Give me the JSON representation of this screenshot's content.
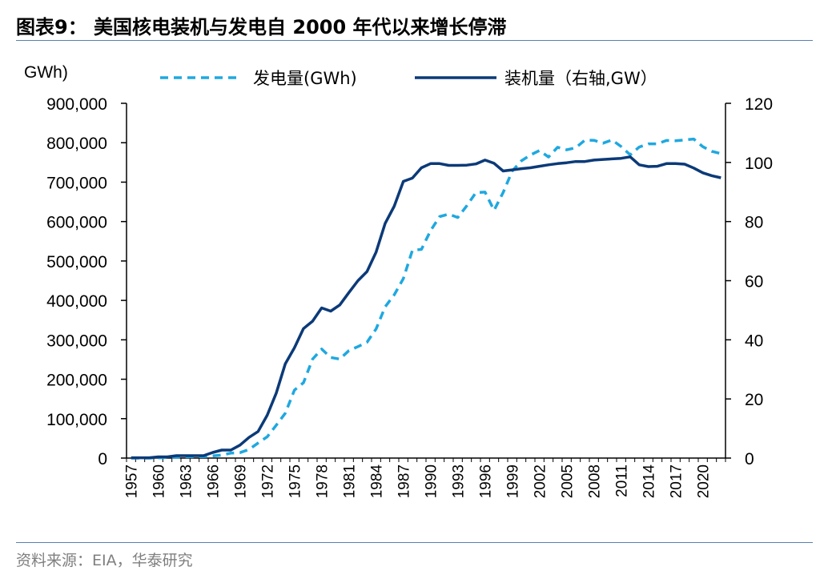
{
  "header": {
    "title": "图表9：  美国核电装机与发电自 2000 年代以来增长停滞"
  },
  "footer": {
    "source": "资料来源：EIA，华泰研究"
  },
  "chart_data": {
    "type": "line",
    "y_left_unit": "GWh)",
    "y_left_ticks": [
      "0",
      "100,000",
      "200,000",
      "300,000",
      "400,000",
      "500,000",
      "600,000",
      "700,000",
      "800,000",
      "900,000"
    ],
    "y_right_ticks": [
      "0",
      "20",
      "40",
      "60",
      "80",
      "100",
      "120"
    ],
    "ylim_left": [
      0,
      900000
    ],
    "ylim_right": [
      0,
      120
    ],
    "x_tick_labels": [
      "1957",
      "1960",
      "1963",
      "1966",
      "1969",
      "1972",
      "1975",
      "1978",
      "1981",
      "1984",
      "1987",
      "1990",
      "1993",
      "1996",
      "1999",
      "2002",
      "2005",
      "2008",
      "2011",
      "2014",
      "2017",
      "2020"
    ],
    "x": [
      1957,
      1958,
      1959,
      1960,
      1961,
      1962,
      1963,
      1964,
      1965,
      1966,
      1967,
      1968,
      1969,
      1970,
      1971,
      1972,
      1973,
      1974,
      1975,
      1976,
      1977,
      1978,
      1979,
      1980,
      1981,
      1982,
      1983,
      1984,
      1985,
      1986,
      1987,
      1988,
      1989,
      1990,
      1991,
      1992,
      1993,
      1994,
      1995,
      1996,
      1997,
      1998,
      1999,
      2000,
      2001,
      2002,
      2003,
      2004,
      2005,
      2006,
      2007,
      2008,
      2009,
      2010,
      2011,
      2012,
      2013,
      2014,
      2015,
      2016,
      2017,
      2018,
      2019,
      2020,
      2021,
      2022
    ],
    "series": [
      {
        "name": "发电量(GWh)",
        "axis": "left",
        "style": "dashed",
        "color": "#1fa8e0",
        "values": [
          0,
          0,
          0,
          500,
          1700,
          2300,
          3200,
          3300,
          3700,
          5500,
          7700,
          12500,
          13900,
          21800,
          38100,
          54100,
          83500,
          114000,
          172500,
          191100,
          250900,
          276400,
          255200,
          251100,
          272700,
          282800,
          293700,
          327600,
          383700,
          414000,
          455300,
          527000,
          529400,
          576900,
          612600,
          618800,
          610300,
          640400,
          673400,
          674700,
          628600,
          673700,
          728300,
          753900,
          768800,
          780100,
          763700,
          788500,
          782000,
          787200,
          806400,
          806200,
          798900,
          807000,
          790200,
          769300,
          789000,
          797200,
          797200,
          805700,
          805000,
          807100,
          809400,
          789900,
          778200,
          772200
        ]
      },
      {
        "name": "装机量（右轴,GW）",
        "axis": "right",
        "style": "solid",
        "color": "#0b3a78",
        "values": [
          0.1,
          0.1,
          0.1,
          0.4,
          0.4,
          0.8,
          0.8,
          0.8,
          0.8,
          1.9,
          2.7,
          2.7,
          4.4,
          7.0,
          9.0,
          14.5,
          22.0,
          31.9,
          37.3,
          43.8,
          46.3,
          50.8,
          49.7,
          51.8,
          56.0,
          60.0,
          63.1,
          69.7,
          79.4,
          85.2,
          93.6,
          94.7,
          98.2,
          99.6,
          99.6,
          99.0,
          99.0,
          99.1,
          99.5,
          100.8,
          99.7,
          97.1,
          97.5,
          97.9,
          98.2,
          98.7,
          99.2,
          99.6,
          99.9,
          100.3,
          100.3,
          100.8,
          101.0,
          101.2,
          101.4,
          101.9,
          99.2,
          98.6,
          98.7,
          99.6,
          99.6,
          99.4,
          98.1,
          96.5,
          95.5,
          94.8
        ]
      }
    ]
  }
}
